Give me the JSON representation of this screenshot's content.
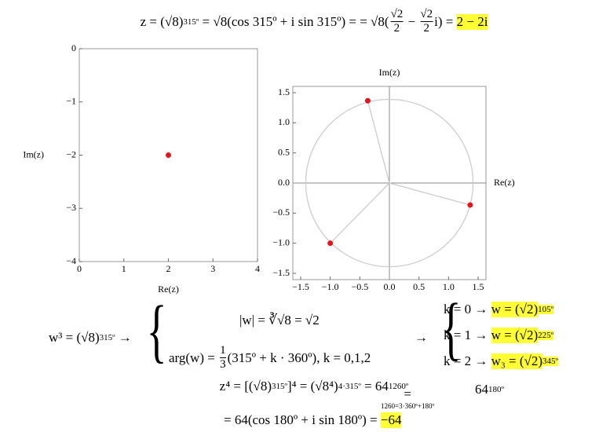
{
  "line1": [
    {
      "text": "z = (√8)"
    },
    {
      "sub": "315º"
    },
    {
      "text": " = √8(cos 315º + i sin 315º) = = √8"
    },
    {
      "text": "("
    },
    {
      "num": "√2",
      "den": "2"
    },
    {
      "text": " − "
    },
    {
      "num": "√2",
      "den": "2"
    },
    {
      "text": "i) = "
    },
    {
      "hl": "2 − 2i"
    }
  ],
  "plot1": {
    "xlim": [
      0,
      4
    ],
    "ylim": [
      -4,
      0
    ],
    "xticks": [
      0,
      1,
      2,
      3,
      4
    ],
    "yticks": [
      0,
      {
        "value": -1,
        "label": "−1"
      },
      {
        "value": -2,
        "label": "−2"
      },
      {
        "value": -3,
        "label": "−3"
      },
      {
        "value": -4,
        "label": "−4"
      }
    ],
    "xlabel": "Re(z)",
    "ylabel": "Im(z)",
    "points_x": [
      2
    ],
    "points_y": [
      -2
    ],
    "color": "#e8141c"
  },
  "plot2": {
    "xlim": [
      -1.5,
      1.5
    ],
    "ylim": [
      -1.5,
      1.5
    ],
    "xticks": [
      {
        "value": -1.5,
        "label": "−1.5"
      },
      {
        "value": -1,
        "label": "−1.0"
      },
      {
        "value": -0.5,
        "label": "−0.5"
      },
      {
        "value": 0,
        "label": "0.0"
      },
      {
        "value": 0.5,
        "label": "0.5"
      },
      {
        "value": 1,
        "label": "1.0"
      },
      {
        "value": 1.5,
        "label": "1.5"
      }
    ],
    "yticks": [
      {
        "value": -1.5,
        "label": "−1.5"
      },
      {
        "value": -1,
        "label": "−1.0"
      },
      {
        "value": -0.5,
        "label": "−0.5"
      },
      {
        "value": 0,
        "label": "0.0"
      },
      {
        "value": 0.5,
        "label": "0.5"
      },
      {
        "value": 1,
        "label": "1.0"
      },
      {
        "value": 1.5,
        "label": "1.5"
      }
    ],
    "xlabel": "Re(z)",
    "ylabel": "Im(z)",
    "radius": 1.414,
    "points_x": [
      -0.366,
      -1,
      1.366
    ],
    "points_y": [
      1.366,
      -1,
      -0.366
    ],
    "color": "#e8141c"
  },
  "w_left": [
    {
      "text": "w³ = (√8)"
    },
    {
      "sub": "315º"
    },
    {
      "text": " →"
    }
  ],
  "w_top": [
    {
      "text": "|w| = ∛√8 = √2"
    }
  ],
  "w_bottom": [
    {
      "text": "arg(w) = "
    },
    {
      "num": "1",
      "den": "3"
    },
    {
      "text": "(315º + k · 360º), k = 0,1,2"
    }
  ],
  "arrow": [
    {
      "text": "→"
    }
  ],
  "roots": [
    [
      {
        "text": "k = 0 → "
      },
      {
        "hl": "w = (√2)"
      },
      {
        "hlsub": "105º"
      }
    ],
    [
      {
        "text": "k = 1 → "
      },
      {
        "hl": "w = (√2)"
      },
      {
        "hlsub": "225º"
      }
    ],
    [
      {
        "text": "k = 2 → "
      },
      {
        "hl": "w₃ = (√2)"
      },
      {
        "hlsub": "345º"
      }
    ]
  ],
  "line4": [
    {
      "text": "z⁴ = [(√8)"
    },
    {
      "sub": "315º"
    },
    {
      "text": "]⁴ = (√8⁴)"
    },
    {
      "sub": "4·315º"
    },
    {
      "text": " = 64"
    },
    {
      "sub": "1260º"
    }
  ],
  "under": [
    {
      "text": "="
    },
    {
      "small": "1260=3·360º+180º"
    }
  ],
  "line4b": [
    {
      "text": "64"
    },
    {
      "sub": "180º"
    }
  ],
  "line5": [
    {
      "text": "= 64(cos 180º + i sin 180º) = "
    },
    {
      "hl": "−64"
    }
  ]
}
